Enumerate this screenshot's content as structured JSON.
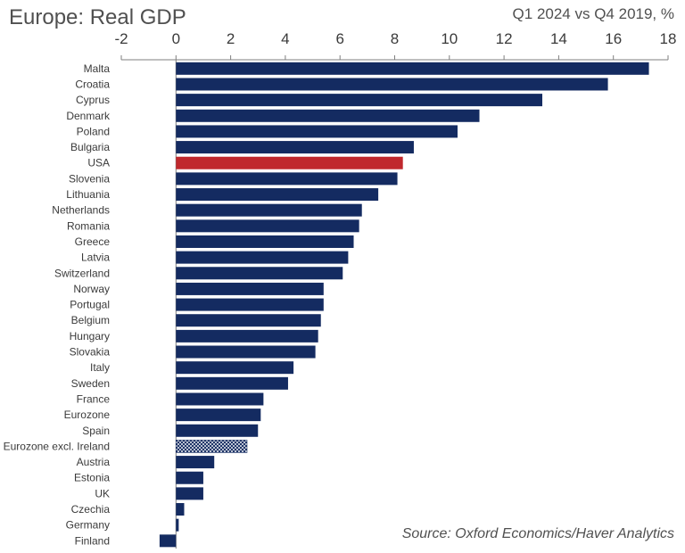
{
  "chart_data": {
    "type": "bar",
    "orientation": "horizontal",
    "title": "Europe: Real GDP",
    "subtitle": "Q1 2024 vs Q4 2019, %",
    "source": "Source: Oxford Economics/Haver Analytics",
    "xlim": [
      -2,
      18
    ],
    "ticks": [
      "-2",
      "0",
      "2",
      "4",
      "6",
      "8",
      "10",
      "12",
      "14",
      "16",
      "18"
    ],
    "tick_values": [
      -2,
      0,
      2,
      4,
      6,
      8,
      10,
      12,
      14,
      16,
      18
    ],
    "axis_position": "top",
    "grid": false,
    "colors": {
      "default": "#142b61",
      "highlight": "#c0282d",
      "hatched_fill": "#ffffff"
    },
    "categories": [
      "Malta",
      "Croatia",
      "Cyprus",
      "Denmark",
      "Poland",
      "Bulgaria",
      "USA",
      "Slovenia",
      "Lithuania",
      "Netherlands",
      "Romania",
      "Greece",
      "Latvia",
      "Switzerland",
      "Norway",
      "Portugal",
      "Belgium",
      "Hungary",
      "Slovakia",
      "Italy",
      "Sweden",
      "France",
      "Eurozone",
      "Spain",
      "Eurozone excl. Ireland",
      "Austria",
      "Estonia",
      "UK",
      "Czechia",
      "Germany",
      "Finland"
    ],
    "values": [
      17.3,
      15.8,
      13.4,
      11.1,
      10.3,
      8.7,
      8.3,
      8.1,
      7.4,
      6.8,
      6.7,
      6.5,
      6.3,
      6.1,
      5.4,
      5.4,
      5.3,
      5.2,
      5.1,
      4.3,
      4.1,
      3.2,
      3.1,
      3.0,
      2.6,
      1.4,
      1.0,
      1.0,
      0.3,
      0.1,
      -0.6
    ],
    "highlight": [
      "USA"
    ],
    "hatched": [
      "Eurozone excl. Ireland"
    ]
  }
}
